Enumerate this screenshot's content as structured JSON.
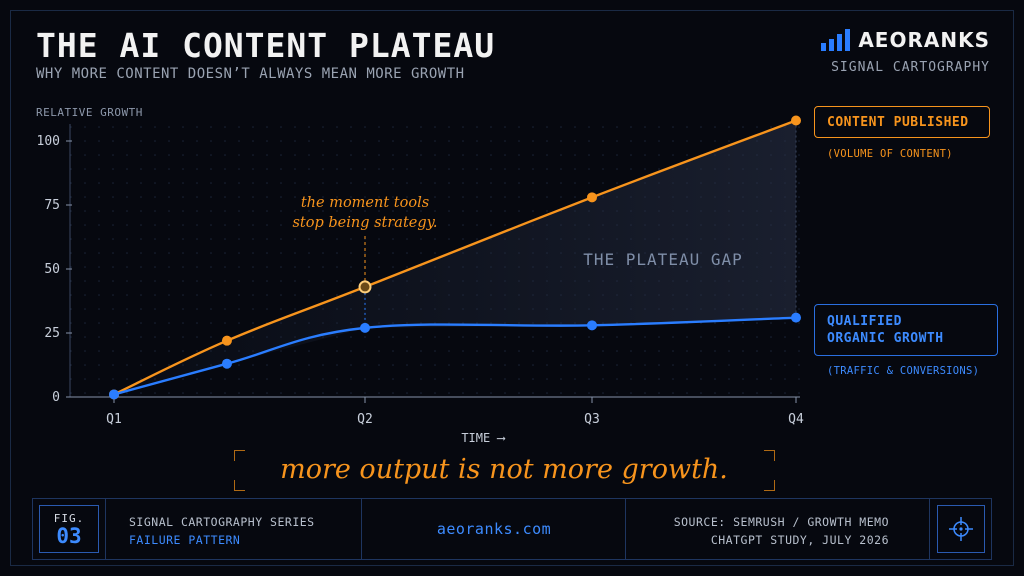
{
  "header": {
    "title": "THE AI CONTENT PLATEAU",
    "subtitle": "WHY MORE CONTENT DOESN’T ALWAYS MEAN MORE GROWTH"
  },
  "brand": {
    "name": "AEORANKS",
    "tagline": "SIGNAL CARTOGRAPHY",
    "logo_icon": "bar-chart-logo-icon",
    "color": "#2a7dff"
  },
  "chart_data": {
    "type": "line",
    "ylabel": "RELATIVE GROWTH",
    "xlabel": "TIME ⟶",
    "ylim": [
      0,
      100
    ],
    "yticks": [
      0,
      25,
      50,
      75,
      100
    ],
    "xticks": [
      "Q1",
      "Q2",
      "Q3",
      "Q4"
    ],
    "grid": "dotted",
    "series": [
      {
        "name": "CONTENT PUBLISHED",
        "subtitle": "(VOLUME OF CONTENT)",
        "color": "#f7941d",
        "points": [
          {
            "x": 0,
            "y": 1
          },
          {
            "x": 0.45,
            "y": 22
          },
          {
            "x": 1,
            "y": 43
          },
          {
            "x": 2,
            "y": 78
          },
          {
            "x": 3,
            "y": 108
          }
        ]
      },
      {
        "name": "QUALIFIED ORGANIC GROWTH",
        "name_lines": [
          "QUALIFIED",
          "ORGANIC GROWTH"
        ],
        "subtitle": "(TRAFFIC & CONVERSIONS)",
        "color": "#2a7dff",
        "points": [
          {
            "x": 0,
            "y": 1
          },
          {
            "x": 0.45,
            "y": 13
          },
          {
            "x": 1,
            "y": 27
          },
          {
            "x": 2,
            "y": 28
          },
          {
            "x": 3,
            "y": 31
          }
        ]
      }
    ],
    "annotations": [
      {
        "text_lines": [
          "the moment tools",
          "stop being strategy."
        ],
        "at_x": 1,
        "color": "#f7941d"
      },
      {
        "text": "THE PLATEAU GAP",
        "color": "#7f8ea8"
      }
    ]
  },
  "quote": "more output is not more growth.",
  "footer": {
    "fig_label": "FIG.",
    "fig_number": "03",
    "series_name": "SIGNAL CARTOGRAPHY SERIES",
    "series_sub": "FAILURE PATTERN",
    "site": "aeoranks.com",
    "source_line1": "SOURCE: SEMRUSH / GROWTH MEMO",
    "source_line2": "CHATGPT STUDY, JULY 2026",
    "target_icon": "crosshair-icon"
  }
}
